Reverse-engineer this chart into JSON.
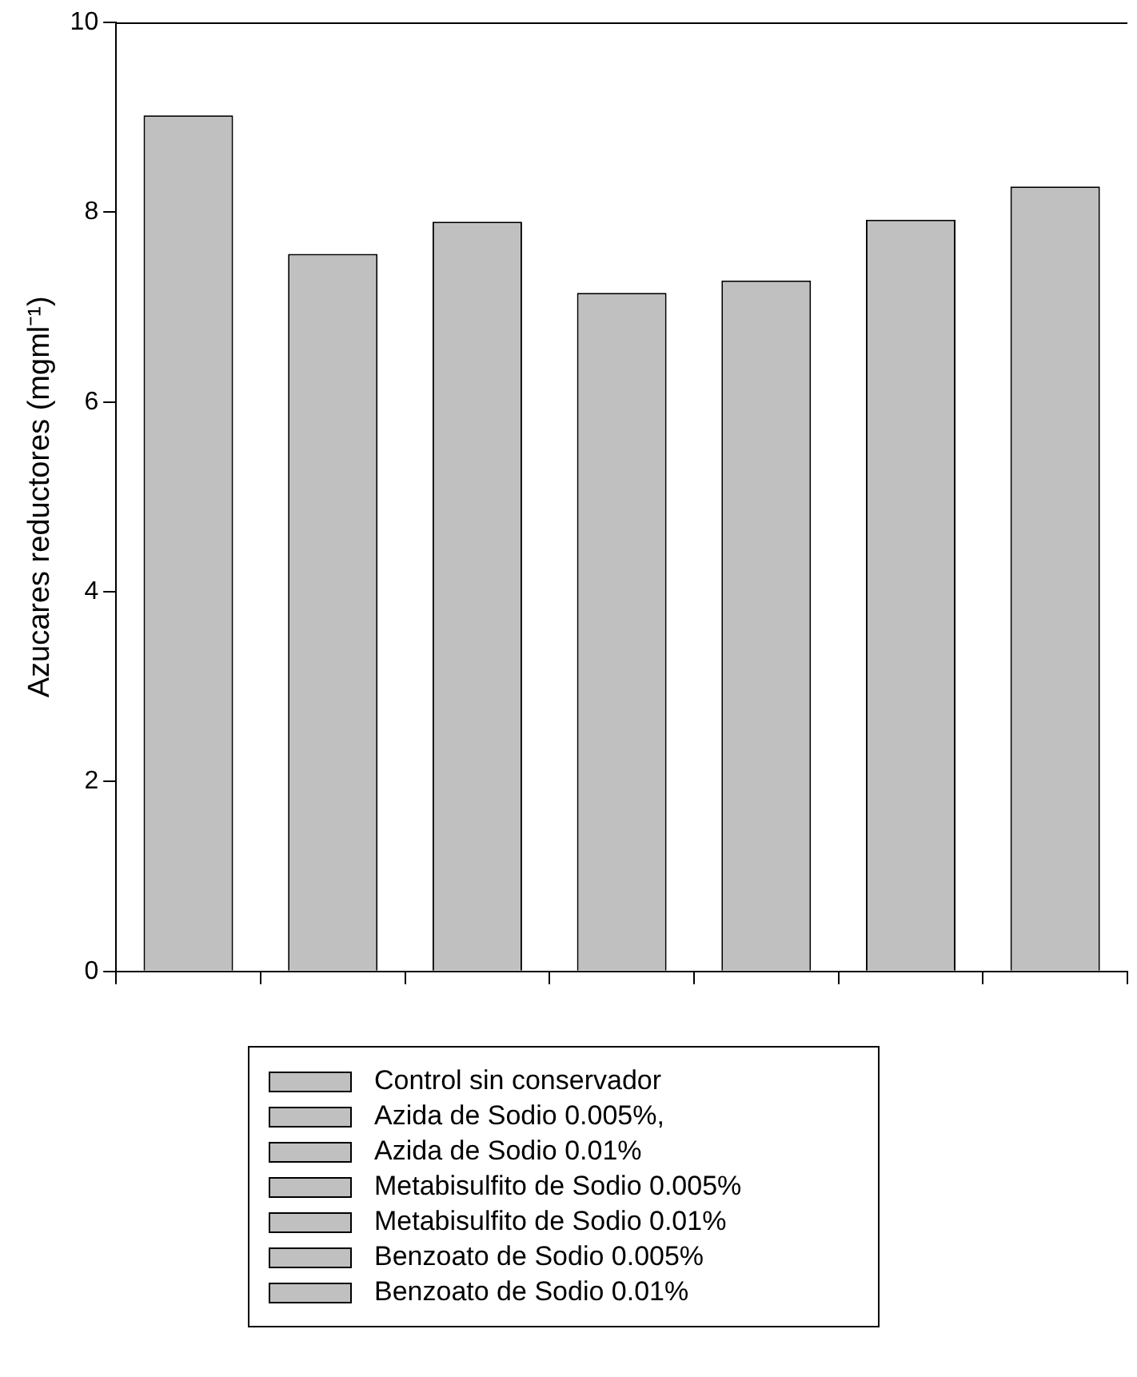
{
  "chart_data": {
    "type": "bar",
    "ylabel": "Azucares reductores (mgml⁻¹)",
    "categories": [
      null,
      null,
      null,
      null,
      null,
      null,
      null
    ],
    "series": [
      {
        "name": "Control sin conservador",
        "color": "#c0c0c0",
        "values": [
          9.02,
          null,
          null,
          null,
          null,
          null,
          null
        ]
      },
      {
        "name": "Azida de Sodio 0.005%,",
        "color": "#c0c0c0",
        "values": [
          null,
          7.56,
          null,
          null,
          null,
          null,
          null
        ]
      },
      {
        "name": "Azida de Sodio 0.01%",
        "color": "#c0c0c0",
        "values": [
          null,
          null,
          7.9,
          null,
          null,
          null,
          null
        ]
      },
      {
        "name": "Metabisulfito de Sodio 0.005%",
        "color": "#c0c0c0",
        "values": [
          null,
          null,
          null,
          7.15,
          null,
          null,
          null
        ]
      },
      {
        "name": "Metabisulfito de Sodio 0.01%",
        "color": "#c0c0c0",
        "values": [
          null,
          null,
          null,
          null,
          7.28,
          null,
          null
        ]
      },
      {
        "name": "Benzoato de Sodio 0.005%",
        "color": "#c0c0c0",
        "values": [
          null,
          null,
          null,
          null,
          null,
          7.92,
          null
        ]
      },
      {
        "name": "Benzoato de Sodio 0.01%",
        "color": "#c0c0c0",
        "values": [
          null,
          null,
          null,
          null,
          null,
          null,
          8.27
        ]
      }
    ],
    "ylim": [
      0,
      10
    ],
    "yticks": [
      0,
      2,
      4,
      6,
      8,
      10
    ],
    "grid": false,
    "legend": "bottom",
    "tick_labels": "y"
  }
}
